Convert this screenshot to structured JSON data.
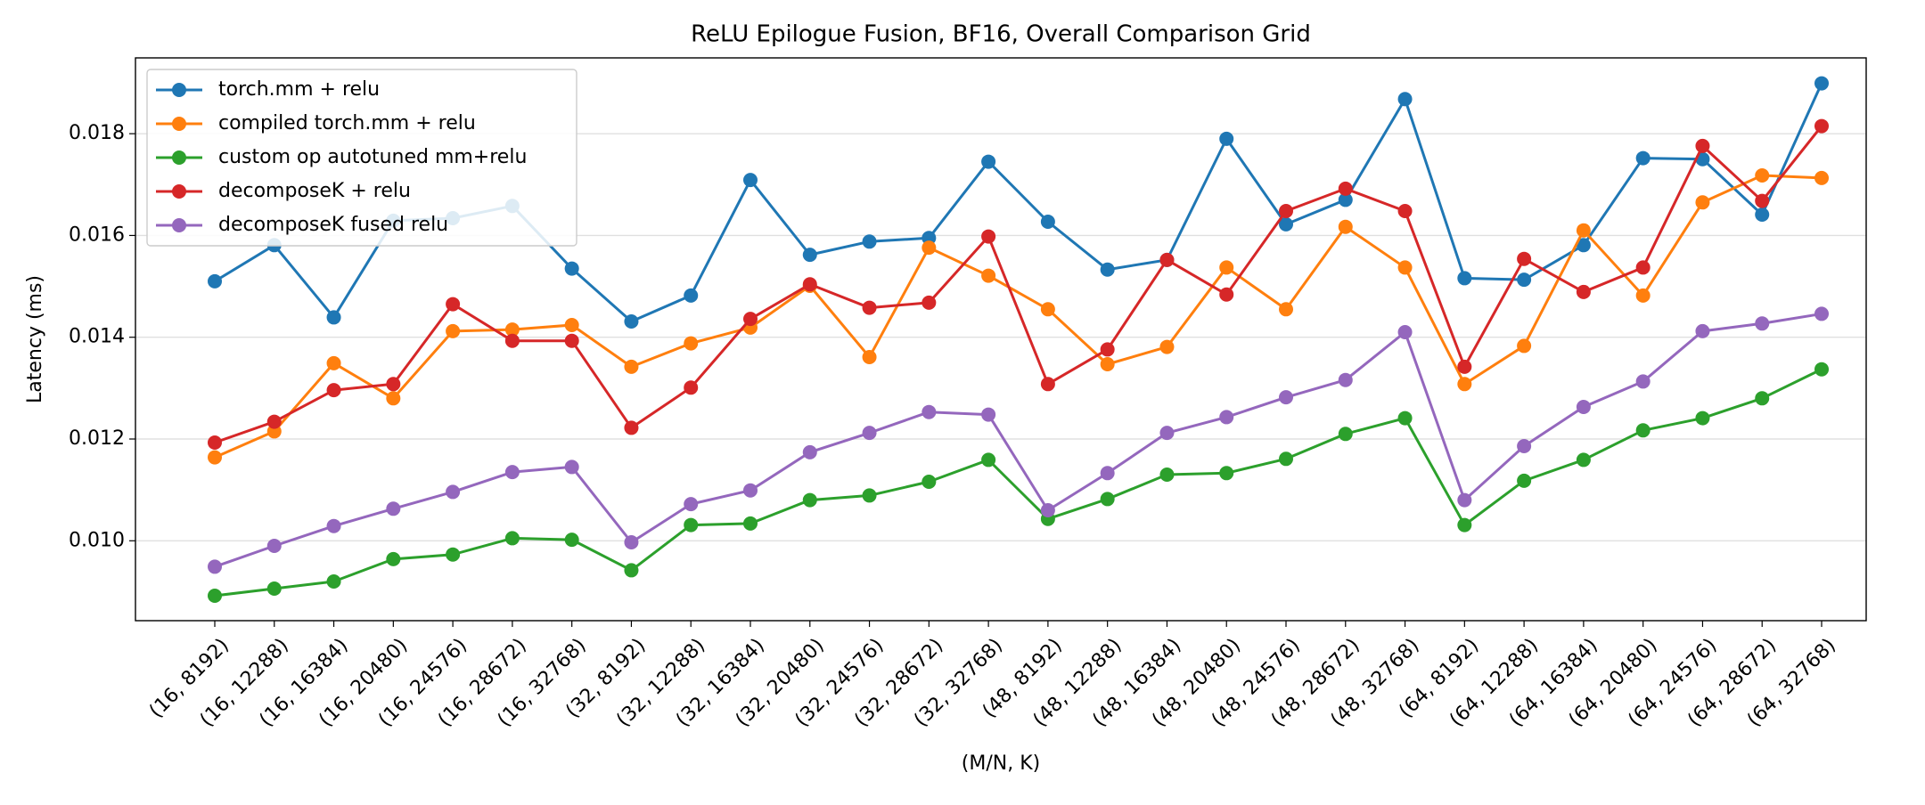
{
  "chart_data": {
    "type": "line",
    "title": "ReLU Epilogue Fusion, BF16, Overall Comparison Grid",
    "xlabel": "(M/N, K)",
    "ylabel": "Latency (ms)",
    "categories": [
      "(16, 8192)",
      "(16, 12288)",
      "(16, 16384)",
      "(16, 20480)",
      "(16, 24576)",
      "(16, 28672)",
      "(16, 32768)",
      "(32, 8192)",
      "(32, 12288)",
      "(32, 16384)",
      "(32, 20480)",
      "(32, 24576)",
      "(32, 28672)",
      "(32, 32768)",
      "(48, 8192)",
      "(48, 12288)",
      "(48, 16384)",
      "(48, 20480)",
      "(48, 24576)",
      "(48, 28672)",
      "(48, 32768)",
      "(64, 8192)",
      "(64, 12288)",
      "(64, 16384)",
      "(64, 20480)",
      "(64, 24576)",
      "(64, 28672)",
      "(64, 32768)"
    ],
    "series": [
      {
        "name": "torch.mm + relu",
        "color": "#1f77b4",
        "values": [
          0.0151,
          0.01581,
          0.01439,
          0.01629,
          0.01634,
          0.01658,
          0.01535,
          0.01431,
          0.01482,
          0.01709,
          0.01562,
          0.01588,
          0.01595,
          0.01745,
          0.01627,
          0.01533,
          0.01552,
          0.0179,
          0.01622,
          0.0167,
          0.01868,
          0.01516,
          0.01513,
          0.01581,
          0.01752,
          0.0175,
          0.01641,
          0.01899
        ]
      },
      {
        "name": "compiled torch.mm + relu",
        "color": "#ff7f0e",
        "values": [
          0.01164,
          0.01215,
          0.01349,
          0.0128,
          0.01412,
          0.01415,
          0.01424,
          0.01342,
          0.01388,
          0.01419,
          0.01501,
          0.01361,
          0.01576,
          0.01521,
          0.01455,
          0.01347,
          0.01381,
          0.01537,
          0.01455,
          0.01617,
          0.01537,
          0.01308,
          0.01383,
          0.0161,
          0.01482,
          0.01665,
          0.01718,
          0.01713
        ]
      },
      {
        "name": "custom op autotuned mm+relu",
        "color": "#2ca02c",
        "values": [
          0.00892,
          0.00906,
          0.0092,
          0.00964,
          0.00973,
          0.01005,
          0.01002,
          0.00942,
          0.01031,
          0.01034,
          0.0108,
          0.01089,
          0.01116,
          0.01159,
          0.01043,
          0.01082,
          0.0113,
          0.01133,
          0.01161,
          0.0121,
          0.01241,
          0.01031,
          0.01118,
          0.01159,
          0.01217,
          0.01241,
          0.0128,
          0.01337
        ]
      },
      {
        "name": "decomposeK + relu",
        "color": "#d62728",
        "values": [
          0.01193,
          0.01234,
          0.01296,
          0.01308,
          0.01465,
          0.01393,
          0.01393,
          0.01222,
          0.01301,
          0.01436,
          0.01504,
          0.01458,
          0.01468,
          0.01598,
          0.01308,
          0.01376,
          0.01552,
          0.01484,
          0.01648,
          0.01692,
          0.01648,
          0.01342,
          0.01554,
          0.01489,
          0.01537,
          0.01776,
          0.01668,
          0.01815
        ]
      },
      {
        "name": "decomposeK fused relu",
        "color": "#9467bd",
        "values": [
          0.00949,
          0.0099,
          0.01029,
          0.01063,
          0.01096,
          0.01135,
          0.01145,
          0.00997,
          0.01072,
          0.01099,
          0.01174,
          0.01212,
          0.01253,
          0.01248,
          0.0106,
          0.01133,
          0.01212,
          0.01243,
          0.01282,
          0.01316,
          0.0141,
          0.0108,
          0.01186,
          0.01263,
          0.01313,
          0.01412,
          0.01427,
          0.01446
        ]
      }
    ],
    "ylim": [
      0.00843,
      0.01949
    ],
    "yticks": [
      {
        "value": 0.01,
        "label": "0.010"
      },
      0.012,
      0.014,
      0.016,
      0.018
    ],
    "grid": true,
    "legend": "upper left"
  }
}
